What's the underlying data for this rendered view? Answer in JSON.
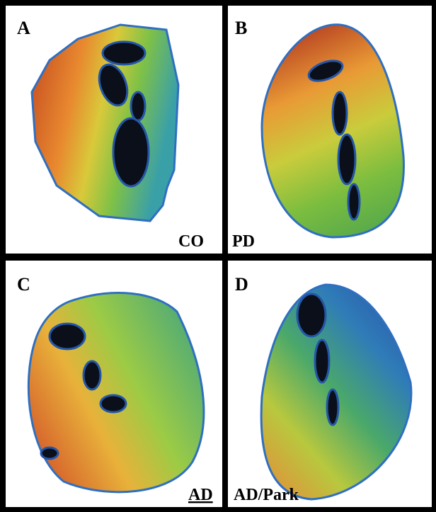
{
  "panels": [
    {
      "letter": "A",
      "label": "CO"
    },
    {
      "letter": "B",
      "label": "PD"
    },
    {
      "letter": "C",
      "label": "AD"
    },
    {
      "letter": "D",
      "label": "AD/Park"
    }
  ]
}
